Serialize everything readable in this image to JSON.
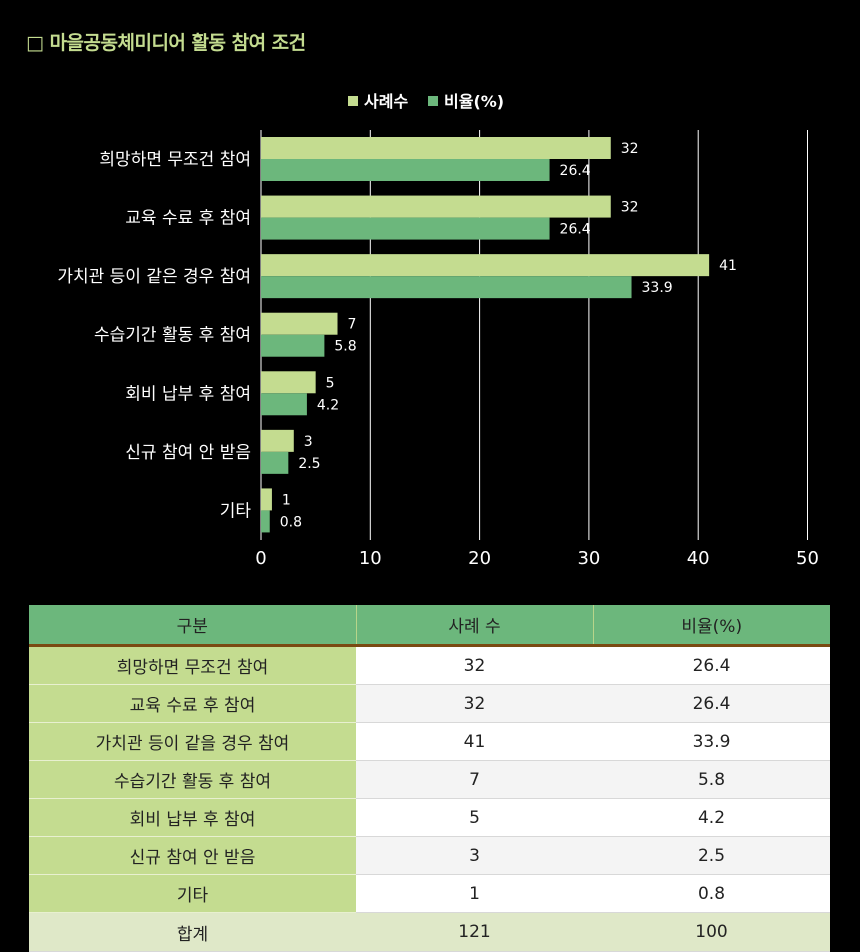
{
  "page": {
    "title": "□ 마을공동체미디어 활동 참여 조건"
  },
  "chart_data": {
    "type": "bar",
    "orientation": "horizontal",
    "categories": [
      "희망하면 무조건 참여",
      "교육 수료 후 참여",
      "가치관 등이 같은 경우 참여",
      "수습기간 활동 후 참여",
      "회비 납부 후 참여",
      "신규 참여 안 받음",
      "기타"
    ],
    "series": [
      {
        "name": "사례수",
        "values": [
          32,
          32,
          41,
          7,
          5,
          3,
          1
        ],
        "labels": [
          "32",
          "32",
          "41",
          "7",
          "5",
          "3",
          "1"
        ],
        "color": "#c4dc90"
      },
      {
        "name": "비율(%)",
        "values": [
          26.4,
          26.4,
          33.9,
          5.8,
          4.2,
          2.5,
          0.8
        ],
        "labels": [
          "26.4",
          "26.4",
          "33.9",
          "5.8",
          "4.2",
          "2.5",
          "0.8"
        ],
        "color": "#6cb77c"
      }
    ],
    "xlim": [
      0,
      50
    ],
    "xticks": [
      "0",
      "10",
      "20",
      "30",
      "40",
      "50"
    ],
    "grid": true,
    "legend": "top-center"
  },
  "table": {
    "headers": [
      "구분",
      "사례 수",
      "비율(%)"
    ],
    "rows": [
      {
        "label": "희망하면 무조건 참여",
        "count": "32",
        "ratio": "26.4"
      },
      {
        "label": "교육 수료 후 참여",
        "count": "32",
        "ratio": "26.4"
      },
      {
        "label": "가치관 등이 같을 경우 참여",
        "count": "41",
        "ratio": "33.9"
      },
      {
        "label": "수습기간 활동 후 참여",
        "count": "7",
        "ratio": "5.8"
      },
      {
        "label": "회비 납부 후 참여",
        "count": "5",
        "ratio": "4.2"
      },
      {
        "label": "신규 참여 안 받음",
        "count": "3",
        "ratio": "2.5"
      },
      {
        "label": "기타",
        "count": "1",
        "ratio": "0.8"
      }
    ],
    "total": {
      "label": "합계",
      "count": "121",
      "ratio": "100"
    }
  }
}
